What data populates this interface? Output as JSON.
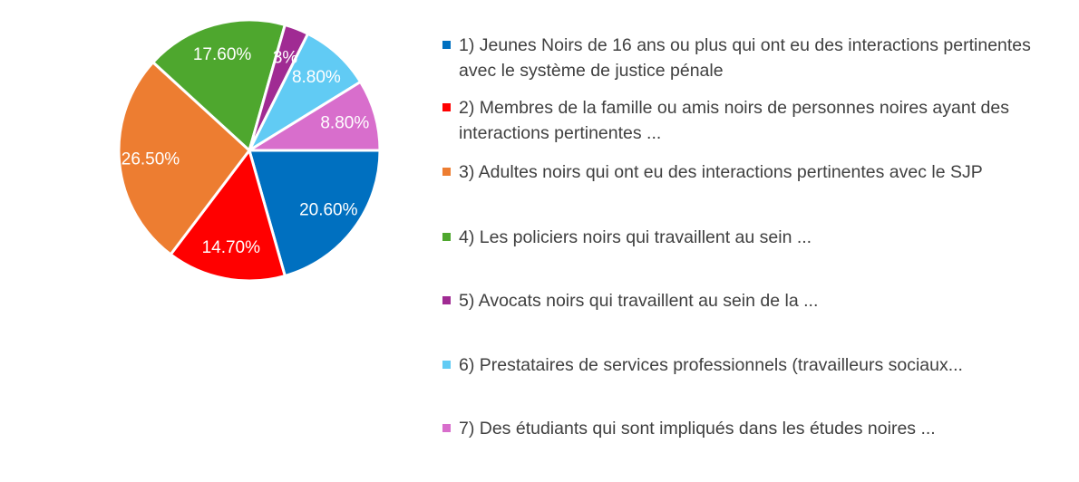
{
  "chart_data": {
    "type": "pie",
    "title": "",
    "legend_position": "right",
    "slices": [
      {
        "label": "1) Jeunes Noirs de 16 ans ou plus qui ont eu des interactions pertinentes avec le système de justice pénale",
        "value": 20.6,
        "value_label": "20.60%",
        "color": "#0070C0"
      },
      {
        "label": "2) Membres de la famille ou amis noirs de personnes noires ayant des interactions pertinentes ...",
        "value": 14.7,
        "value_label": "14.70%",
        "color": "#FF0000"
      },
      {
        "label": "3) Adultes noirs qui ont eu des interactions pertinentes avec le SJP",
        "value": 26.5,
        "value_label": "26.50%",
        "color": "#ED7D31"
      },
      {
        "label": "4) Les policiers noirs qui travaillent au sein ...",
        "value": 17.6,
        "value_label": "17.60%",
        "color": "#4EA72E"
      },
      {
        "label": "5) Avocats noirs qui travaillent au sein de la ...",
        "value": 3,
        "value_label": "3%",
        "color": "#A02B93"
      },
      {
        "label": "6) Prestataires de services professionnels (travailleurs sociaux...",
        "value": 8.8,
        "value_label": "8.80%",
        "color": "#61CBF4"
      },
      {
        "label": "7) Des étudiants qui sont impliqués dans les études noires ...",
        "value": 8.8,
        "value_label": "8.80%",
        "color": "#D86ECC"
      }
    ]
  }
}
